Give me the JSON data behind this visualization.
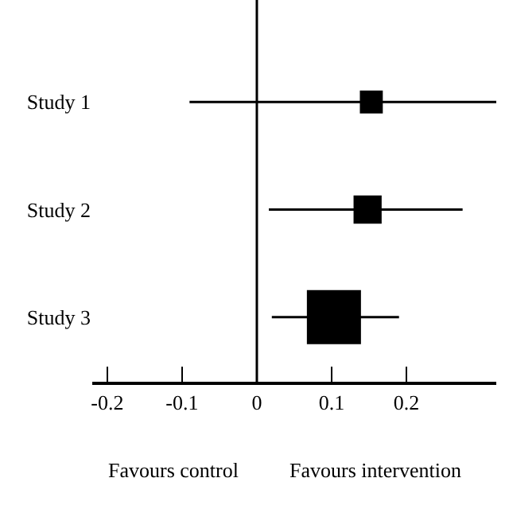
{
  "chart_data": {
    "type": "bubble",
    "orientation": "horizontal",
    "marker": "square",
    "categories": [
      "Study 1",
      "Study 2",
      "Study 3"
    ],
    "values": [
      0.153,
      0.148,
      0.103
    ],
    "errors": [
      [
        -0.09,
        0.32
      ],
      [
        0.016,
        0.275
      ],
      [
        0.02,
        0.19
      ]
    ],
    "sizes": [
      0.18,
      0.27,
      1
    ],
    "color": "#000000",
    "xlim": [
      -0.22,
      0.32
    ],
    "xticks": [
      -0.2,
      -0.1,
      0,
      0.1,
      0.2
    ],
    "ref_lines": [
      {
        "axis": "x",
        "value": 0
      }
    ],
    "annotations": [
      "Favours control",
      "Favours intervention"
    ]
  }
}
